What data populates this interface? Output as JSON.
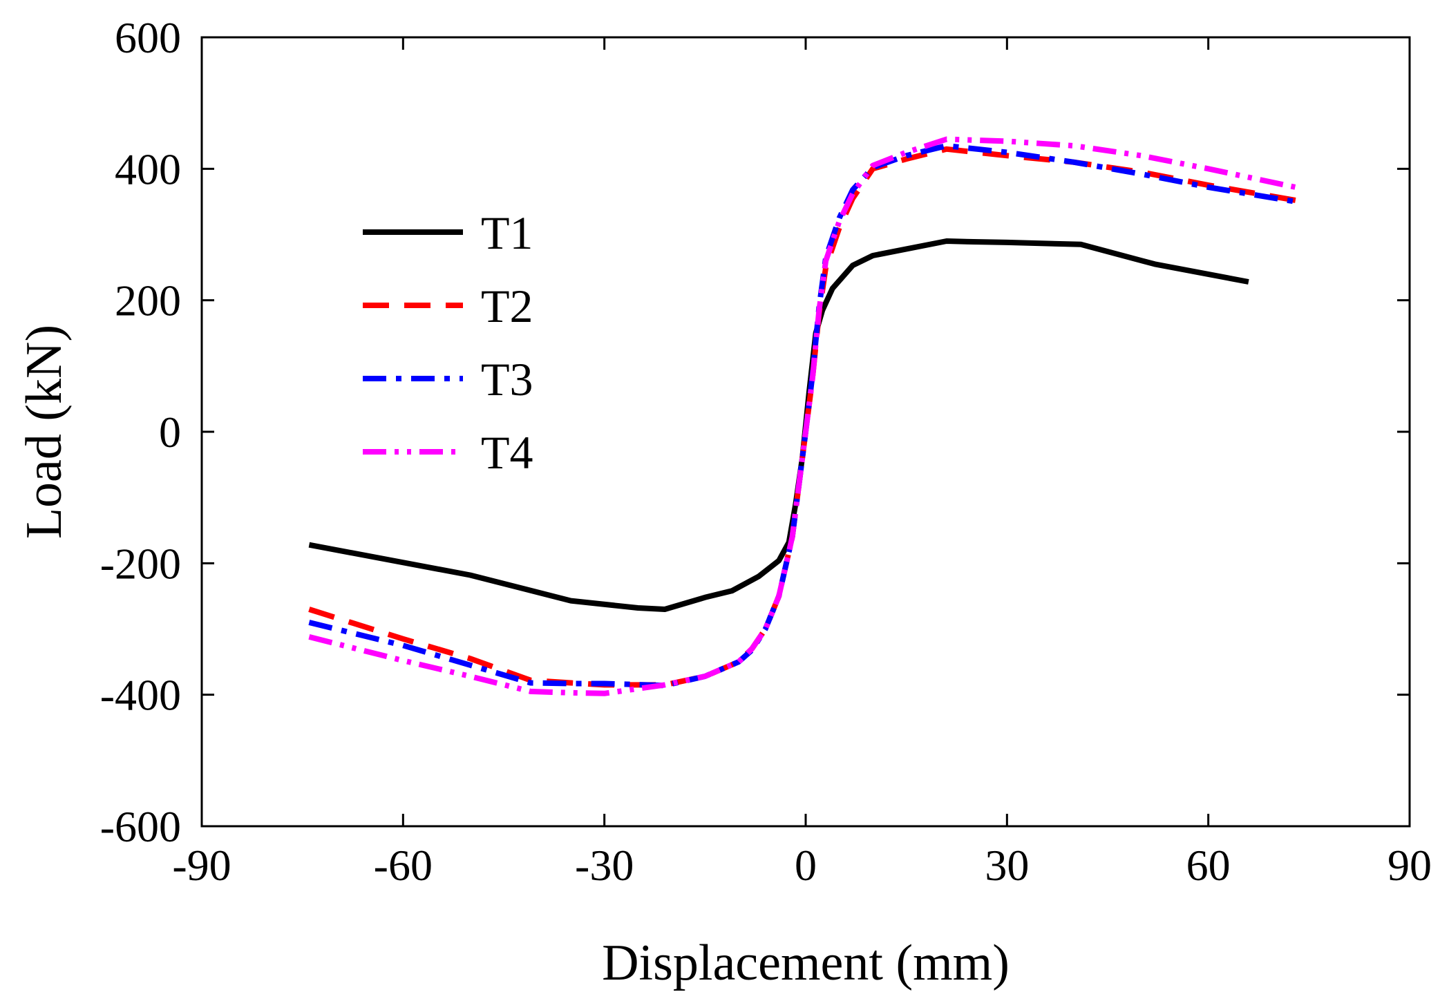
{
  "chart_data": {
    "type": "line",
    "title": "",
    "xlabel": "Displacement (mm)",
    "ylabel": "Load (kN)",
    "xlim": [
      -90,
      90
    ],
    "ylim": [
      -600,
      600
    ],
    "xticks": [
      -90,
      -60,
      -30,
      0,
      30,
      60,
      90
    ],
    "yticks": [
      -600,
      -400,
      -200,
      0,
      200,
      400,
      600
    ],
    "xtick_labels": [
      "-90",
      "-60",
      "-30",
      "0",
      "30",
      "60",
      "90"
    ],
    "ytick_labels": [
      "-600",
      "-400",
      "-200",
      "0",
      "200",
      "400",
      "600"
    ],
    "grid": false,
    "legend_position": "upper-left",
    "series": [
      {
        "name": "T1",
        "color": "#000000",
        "style": "solid",
        "x": [
          -74,
          -50,
          -35,
          -25,
          -21,
          -15,
          -11,
          -7,
          -4,
          -2.5,
          -1.5,
          -0.5,
          0,
          0.5,
          1.5,
          2.5,
          4,
          7,
          10,
          15,
          21,
          25,
          30,
          41,
          52,
          66
        ],
        "y": [
          -172,
          -218,
          -257,
          -268,
          -270,
          -252,
          -242,
          -220,
          -196,
          -168,
          -110,
          -40,
          10,
          60,
          150,
          185,
          218,
          253,
          268,
          278,
          290,
          289,
          288,
          285,
          255,
          228
        ]
      },
      {
        "name": "T2",
        "color": "#ff0000",
        "style": "dashed",
        "x": [
          -74,
          -60,
          -50,
          -41,
          -35,
          -30,
          -21,
          -15,
          -10,
          -8,
          -6,
          -4,
          -2,
          -1,
          0,
          1,
          2,
          3,
          5,
          7,
          10,
          15,
          21,
          30,
          40,
          50,
          60,
          73
        ],
        "y": [
          -270,
          -315,
          -345,
          -378,
          -382,
          -385,
          -385,
          -372,
          -350,
          -330,
          -300,
          -250,
          -160,
          -80,
          0,
          80,
          180,
          250,
          310,
          355,
          400,
          415,
          430,
          420,
          410,
          395,
          375,
          352
        ]
      },
      {
        "name": "T3",
        "color": "#0000ff",
        "style": "dashdot",
        "x": [
          -74,
          -60,
          -50,
          -41,
          -35,
          -30,
          -21,
          -15,
          -10,
          -8,
          -6,
          -4,
          -2,
          -1,
          0,
          1,
          2,
          3,
          5,
          7,
          10,
          15,
          21,
          30,
          40,
          50,
          60,
          73
        ],
        "y": [
          -290,
          -325,
          -355,
          -382,
          -383,
          -383,
          -386,
          -372,
          -350,
          -332,
          -300,
          -250,
          -160,
          -80,
          0,
          85,
          190,
          265,
          325,
          368,
          402,
          420,
          435,
          425,
          410,
          392,
          372,
          350
        ]
      },
      {
        "name": "T4",
        "color": "#ff00ff",
        "style": "dashdotdot",
        "x": [
          -74,
          -60,
          -50,
          -41,
          -35,
          -30,
          -21,
          -15,
          -10,
          -8,
          -6,
          -4,
          -2,
          -1,
          0,
          1,
          2,
          3,
          5,
          7,
          10,
          15,
          21,
          30,
          40,
          50,
          60,
          73
        ],
        "y": [
          -312,
          -348,
          -372,
          -395,
          -397,
          -398,
          -385,
          -372,
          -350,
          -330,
          -300,
          -250,
          -160,
          -80,
          0,
          80,
          185,
          260,
          320,
          362,
          405,
          425,
          445,
          442,
          435,
          420,
          400,
          372
        ]
      }
    ]
  }
}
